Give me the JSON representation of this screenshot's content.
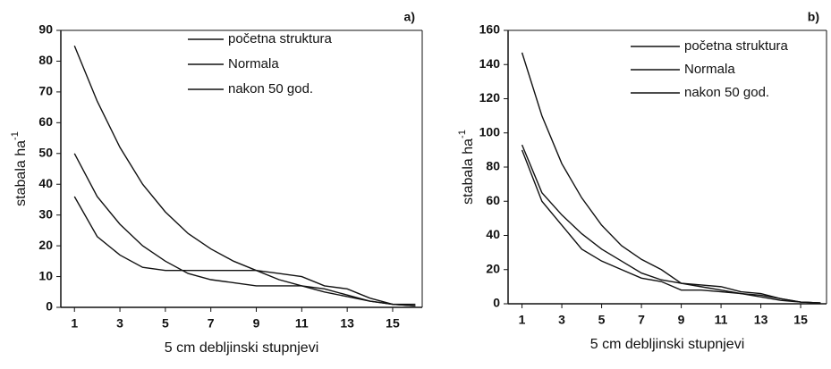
{
  "chart_data": [
    {
      "type": "line",
      "annotation": "a)",
      "xlabel": "5 cm debljinski stupnjevi",
      "ylabel": "stabala ha",
      "ylabel_sup": "-1",
      "x": [
        1,
        2,
        3,
        4,
        5,
        6,
        7,
        8,
        9,
        10,
        11,
        12,
        13,
        14,
        15,
        16
      ],
      "xlim": [
        0.4,
        16.3
      ],
      "xticks": [
        1,
        3,
        5,
        7,
        9,
        11,
        13,
        15
      ],
      "ylim": [
        0,
        90
      ],
      "yticks": [
        0,
        10,
        20,
        30,
        40,
        50,
        60,
        70,
        80,
        90
      ],
      "legend": "upper right",
      "series": [
        {
          "name": "početna struktura",
          "color": "#111111",
          "values": [
            36,
            23,
            17,
            13,
            12,
            12,
            12,
            12,
            12,
            11,
            10,
            7,
            6,
            3,
            1,
            1
          ]
        },
        {
          "name": "Normala",
          "color": "#111111",
          "values": [
            85,
            67,
            52,
            40,
            31,
            24,
            19,
            15,
            12,
            9,
            7,
            5,
            3.5,
            2,
            1,
            0.5
          ]
        },
        {
          "name": "nakon 50 god.",
          "color": "#111111",
          "values": [
            50,
            36,
            27,
            20,
            15,
            11,
            9,
            8,
            7,
            7,
            7,
            6,
            4,
            2,
            1,
            0.5
          ]
        }
      ]
    },
    {
      "type": "line",
      "annotation": "b)",
      "xlabel": "5 cm debljinski stupnjevi",
      "ylabel": "stabala ha",
      "ylabel_sup": "-1",
      "x": [
        1,
        2,
        3,
        4,
        5,
        6,
        7,
        8,
        9,
        10,
        11,
        12,
        13,
        14,
        15,
        16
      ],
      "xlim": [
        0.3,
        16.3
      ],
      "xticks": [
        1,
        3,
        5,
        7,
        9,
        11,
        13,
        15
      ],
      "ylim": [
        0,
        160
      ],
      "yticks": [
        0,
        20,
        40,
        60,
        80,
        100,
        120,
        140,
        160
      ],
      "legend": "upper right",
      "series": [
        {
          "name": "početna struktura",
          "color": "#111111",
          "values": [
            93,
            65,
            52,
            41,
            32,
            25,
            18,
            14,
            12,
            10,
            8,
            6,
            4,
            2,
            1,
            0.5
          ]
        },
        {
          "name": "Normala",
          "color": "#111111",
          "values": [
            147,
            110,
            82,
            62,
            46,
            34,
            26,
            20,
            12,
            11,
            10,
            7,
            6,
            3,
            1,
            0.5
          ]
        },
        {
          "name": "nakon 50 god.",
          "color": "#111111",
          "values": [
            90,
            60,
            46,
            32,
            25,
            20,
            15,
            13,
            8,
            8,
            7,
            6,
            5,
            3,
            1,
            0.5
          ]
        }
      ]
    }
  ]
}
